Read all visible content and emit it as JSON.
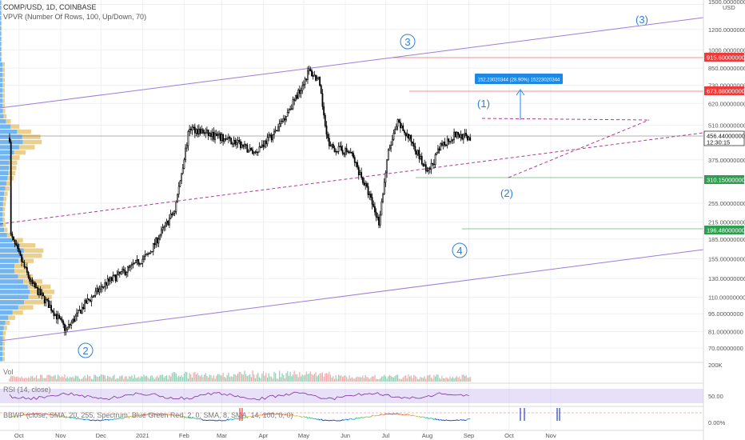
{
  "header": {
    "symbol_line": "COMP/USD, 1D, COINBASE",
    "indicator_line": "VPVR (Number Of Rows, 100, Up/Down, 70)"
  },
  "panes": {
    "volume_label": "Vol",
    "rsi_label": "RSI (14, close)",
    "bbwp_label": "BBWP (close, SMA, 20, 255, Spectrum, Blue Green Red, 2, 0, SMA, 8, SMA, 14, 100, 0, 0)",
    "volume_tick": "200K",
    "rsi_tick": "50.00",
    "bbwp_tick": "0.00%"
  },
  "colors": {
    "grid": "#eef0f3",
    "axis_text": "#555555",
    "candle": "#000000",
    "channel": "#9c7dd8",
    "dashed": "#b0399a",
    "wave_label": "#2f7fd9",
    "measure": "#1e88e5",
    "red_tag": "#ef3a3a",
    "green_tag": "#2e9e4f",
    "neutral_tag": "#ffffff",
    "vpvr_up": "#5aa9ee",
    "vpvr_down": "#e8c77a",
    "rsi_band": "#cbb9f2",
    "rsi_line": "#7b2f9b"
  },
  "chart_data": {
    "type": "candlestick",
    "symbol": "COMP/USD",
    "timeframe": "1D",
    "exchange": "COINBASE",
    "currency_label": "USD",
    "y_scale": "log",
    "ylim": [
      62,
      1560
    ],
    "x_tick_labels": [
      "Oct",
      "Nov",
      "Dec",
      "2021",
      "Feb",
      "Mar",
      "Apr",
      "May",
      "Jun",
      "Jul",
      "Aug",
      "Sep",
      "Oct",
      "Nov"
    ],
    "y_tick_labels": [
      "1500.00000000",
      "1200.00000000",
      "1000.00000000",
      "850.00000000",
      "730.00000000",
      "620.00000000",
      "510.00000000",
      "375.00000000",
      "255.00000000",
      "215.00000000",
      "185.00000000",
      "155.00000000",
      "130.00000000",
      "110.00000000",
      "95.00000000",
      "81.00000000",
      "70.00000000"
    ],
    "approx_close_path": [
      {
        "x": "2020-09-25",
        "close": 190
      },
      {
        "x": "2020-10-10",
        "close": 125
      },
      {
        "x": "2020-10-25",
        "close": 100
      },
      {
        "x": "2020-11-05",
        "close": 82
      },
      {
        "x": "2020-11-20",
        "close": 105
      },
      {
        "x": "2020-12-05",
        "close": 125
      },
      {
        "x": "2020-12-20",
        "close": 140
      },
      {
        "x": "2021-01-05",
        "close": 160
      },
      {
        "x": "2021-01-25",
        "close": 240
      },
      {
        "x": "2021-02-05",
        "close": 500
      },
      {
        "x": "2021-02-20",
        "close": 470
      },
      {
        "x": "2021-03-10",
        "close": 440
      },
      {
        "x": "2021-03-25",
        "close": 400
      },
      {
        "x": "2021-04-10",
        "close": 480
      },
      {
        "x": "2021-04-25",
        "close": 650
      },
      {
        "x": "2021-05-05",
        "close": 830
      },
      {
        "x": "2021-05-12",
        "close": 760
      },
      {
        "x": "2021-05-20",
        "close": 420
      },
      {
        "x": "2021-06-05",
        "close": 400
      },
      {
        "x": "2021-06-18",
        "close": 280
      },
      {
        "x": "2021-06-26",
        "close": 215
      },
      {
        "x": "2021-07-03",
        "close": 400
      },
      {
        "x": "2021-07-10",
        "close": 520
      },
      {
        "x": "2021-07-22",
        "close": 430
      },
      {
        "x": "2021-08-01",
        "close": 330
      },
      {
        "x": "2021-08-12",
        "close": 430
      },
      {
        "x": "2021-08-22",
        "close": 470
      },
      {
        "x": "2021-09-02",
        "close": 456
      }
    ],
    "price_tags": [
      {
        "value": "915.60000000",
        "style": "red"
      },
      {
        "value": "673.88000000",
        "style": "red"
      },
      {
        "value": "456.44000000",
        "style": "neutral",
        "sub": "12:30:15"
      },
      {
        "value": "310.15000000",
        "style": "green"
      },
      {
        "value": "196.48000000",
        "style": "green"
      }
    ],
    "measurement": {
      "text": "152.23020344 (28.90%) 15223020344"
    },
    "wave_labels": [
      "2",
      "3",
      "4",
      "(1)",
      "(2)",
      "(3)"
    ],
    "rsi": {
      "period": 14
    },
    "bbwp": {
      "length": 20
    }
  }
}
